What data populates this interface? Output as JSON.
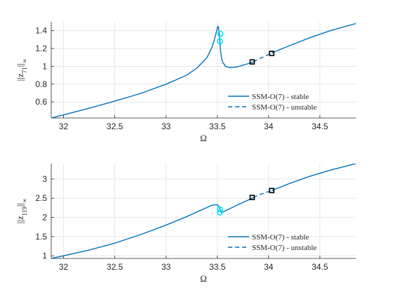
{
  "chart_data": [
    {
      "type": "line",
      "xlabel": "Ω",
      "ylabel": "||z_71||∞",
      "xlim": [
        31.88,
        34.85
      ],
      "ylim": [
        0.42,
        1.5
      ],
      "xticks": [
        "32",
        "32.5",
        "33",
        "33.5",
        "34",
        "34.5"
      ],
      "yticks": [
        "0.6",
        "0.8",
        "1",
        "1.2",
        "1.4"
      ],
      "grid": true,
      "legend_position": "bottom-right",
      "series": [
        {
          "name": "SSM-O(7) - stable",
          "style": "solid",
          "color": "#0072bd",
          "x": [
            31.88,
            32.0,
            32.25,
            32.5,
            32.75,
            33.0,
            33.2,
            33.3,
            33.4,
            33.45,
            33.48,
            33.505,
            33.51,
            33.52,
            33.525,
            33.53,
            33.54,
            33.55,
            33.58,
            33.62,
            33.7,
            33.8,
            33.85
          ],
          "y": [
            0.42,
            0.455,
            0.53,
            0.61,
            0.695,
            0.8,
            0.9,
            0.98,
            1.1,
            1.22,
            1.34,
            1.45,
            1.44,
            1.35,
            1.28,
            1.18,
            1.1,
            1.05,
            1.0,
            0.985,
            0.995,
            1.03,
            1.05
          ]
        },
        {
          "name": "SSM-O(7) - unstable",
          "style": "dashed",
          "color": "#0072bd",
          "x": [
            33.85,
            33.92,
            34.03
          ],
          "y": [
            1.05,
            1.09,
            1.15
          ]
        },
        {
          "name": "",
          "style": "solid",
          "color": "#0072bd",
          "x": [
            34.03,
            34.2,
            34.4,
            34.6,
            34.85
          ],
          "y": [
            1.15,
            1.23,
            1.32,
            1.4,
            1.48
          ]
        }
      ],
      "markers": [
        {
          "x": 33.53,
          "y": 1.365,
          "color": "#00e5ff"
        },
        {
          "x": 33.525,
          "y": 1.28,
          "color": "#00e5ff"
        },
        {
          "x": 33.84,
          "y": 1.05,
          "color": "#000000"
        },
        {
          "x": 34.03,
          "y": 1.145,
          "color": "#000000"
        }
      ]
    },
    {
      "type": "line",
      "xlabel": "Ω",
      "ylabel": "||z_119||∞",
      "xlim": [
        31.88,
        34.85
      ],
      "ylim": [
        0.93,
        3.4
      ],
      "xticks": [
        "32",
        "32.5",
        "33",
        "33.5",
        "34",
        "34.5"
      ],
      "yticks": [
        "1",
        "1.5",
        "2",
        "2.5",
        "3"
      ],
      "grid": true,
      "legend_position": "bottom-right",
      "series": [
        {
          "name": "SSM-O(7) - stable",
          "style": "solid",
          "color": "#0072bd",
          "x": [
            31.88,
            32.0,
            32.25,
            32.5,
            32.75,
            33.0,
            33.2,
            33.35,
            33.45,
            33.5,
            33.52,
            33.53,
            33.54,
            33.56,
            33.6,
            33.7,
            33.8,
            33.85
          ],
          "y": [
            0.93,
            1.0,
            1.15,
            1.33,
            1.55,
            1.8,
            2.02,
            2.2,
            2.32,
            2.33,
            2.27,
            2.17,
            2.13,
            2.15,
            2.2,
            2.33,
            2.45,
            2.52
          ]
        },
        {
          "name": "SSM-O(7) - unstable",
          "style": "dashed",
          "color": "#0072bd",
          "x": [
            33.85,
            33.92,
            34.03
          ],
          "y": [
            2.52,
            2.6,
            2.7
          ]
        },
        {
          "name": "",
          "style": "solid",
          "color": "#0072bd",
          "x": [
            34.03,
            34.2,
            34.4,
            34.6,
            34.85
          ],
          "y": [
            2.7,
            2.88,
            3.07,
            3.23,
            3.4
          ]
        }
      ],
      "markers": [
        {
          "x": 33.525,
          "y": 2.21,
          "color": "#00e5ff"
        },
        {
          "x": 33.525,
          "y": 2.13,
          "color": "#00e5ff"
        },
        {
          "x": 33.84,
          "y": 2.52,
          "color": "#000000"
        },
        {
          "x": 34.03,
          "y": 2.7,
          "color": "#000000"
        }
      ]
    }
  ]
}
